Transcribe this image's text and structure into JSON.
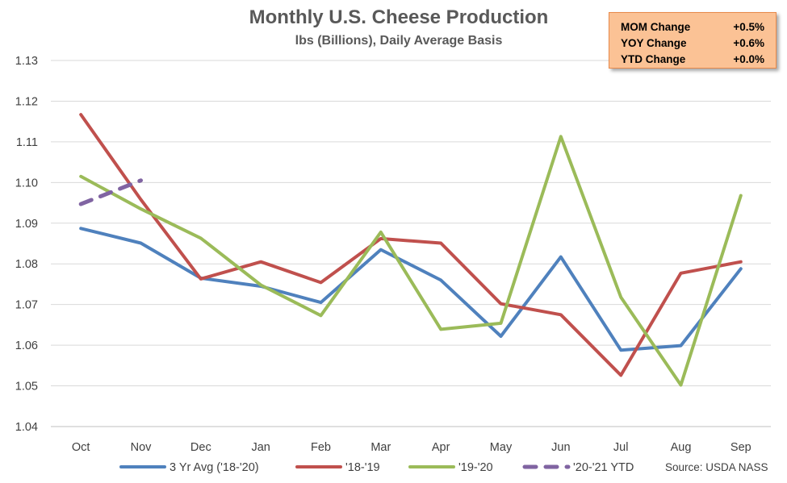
{
  "title": "Monthly U.S. Cheese Production",
  "subtitle": "lbs (Billions), Daily Average Basis",
  "stats": [
    {
      "label": "MOM Change",
      "value": "+0.5%"
    },
    {
      "label": "YOY Change",
      "value": "+0.6%"
    },
    {
      "label": "YTD Change",
      "value": "+0.0%"
    }
  ],
  "source": "Source: USDA NASS",
  "chart_data": {
    "type": "line",
    "title": "Monthly U.S. Cheese Production",
    "subtitle": "lbs (Billions), Daily Average Basis",
    "xlabel": "",
    "ylabel": "",
    "categories": [
      "Oct",
      "Nov",
      "Dec",
      "Jan",
      "Feb",
      "Mar",
      "Apr",
      "May",
      "Jun",
      "Jul",
      "Aug",
      "Sep"
    ],
    "ylim": [
      1.04,
      1.13
    ],
    "yticks": [
      "1.04",
      "1.05",
      "1.06",
      "1.07",
      "1.08",
      "1.09",
      "1.10",
      "1.11",
      "1.12",
      "1.13"
    ],
    "grid": true,
    "legend_position": "bottom",
    "series": [
      {
        "name": "3 Yr Avg ('18-'20)",
        "color": "#4f81bd",
        "dashed": false,
        "values": [
          1.0887,
          1.0851,
          1.0765,
          1.0745,
          1.0705,
          1.0835,
          1.076,
          1.0622,
          1.0817,
          1.0588,
          1.0599,
          1.0788
        ]
      },
      {
        "name": "'18-'19",
        "color": "#c0504d",
        "dashed": false,
        "values": [
          1.1167,
          1.0958,
          1.0763,
          1.0805,
          1.0754,
          1.0862,
          1.0851,
          1.0702,
          1.0675,
          1.0526,
          1.0777,
          1.0805
        ]
      },
      {
        "name": "'19-'20",
        "color": "#9bbb59",
        "dashed": false,
        "values": [
          1.1015,
          1.0935,
          1.0863,
          1.0748,
          1.0673,
          1.0878,
          1.0639,
          1.0654,
          1.1113,
          1.0718,
          1.0502,
          1.0968
        ]
      },
      {
        "name": "'20-'21 YTD",
        "color": "#8064a2",
        "dashed": true,
        "values": [
          1.0947,
          1.1005,
          null,
          null,
          null,
          null,
          null,
          null,
          null,
          null,
          null,
          null
        ]
      }
    ]
  }
}
